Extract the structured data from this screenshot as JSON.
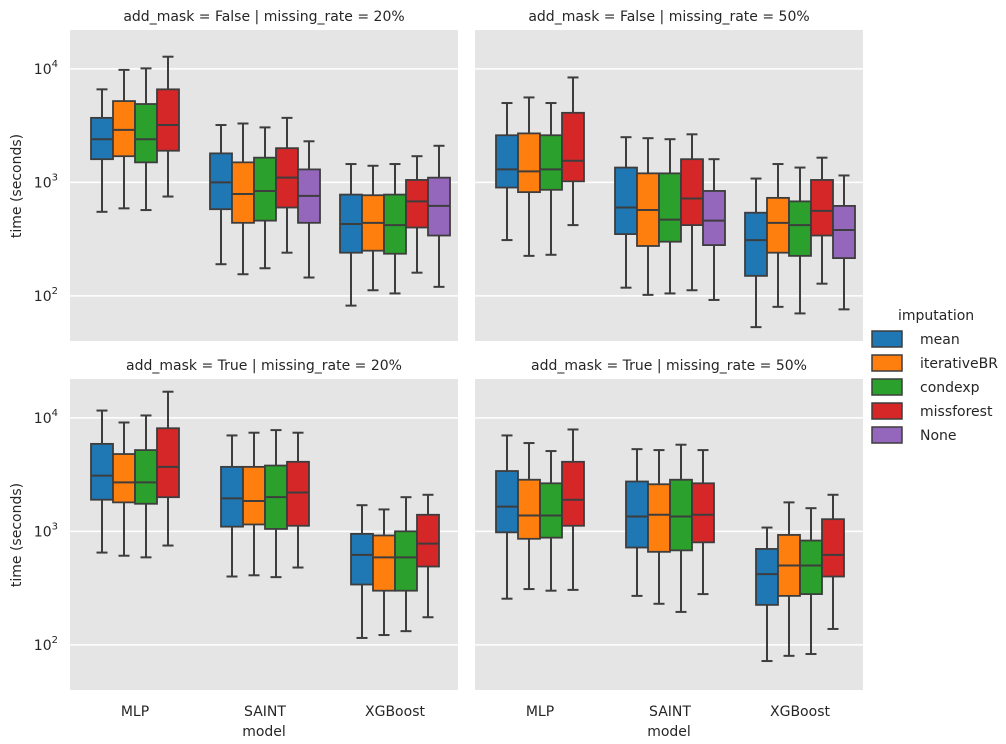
{
  "chart_data": {
    "type": "box",
    "title": "",
    "xlabel": "model",
    "ylabel": "time (seconds)",
    "y_scale": "log",
    "ylim": [
      40,
      22000
    ],
    "grid": true,
    "legend_position": "right",
    "legend_title": "imputation",
    "categories": [
      "MLP",
      "SAINT",
      "XGBoost"
    ],
    "hues": [
      {
        "name": "mean",
        "color": "#1f77b4"
      },
      {
        "name": "iterativeBR",
        "color": "#ff7f0e"
      },
      {
        "name": "condexp",
        "color": "#2ca02c"
      },
      {
        "name": "missforest",
        "color": "#d62728"
      },
      {
        "name": "None",
        "color": "#9467bd"
      }
    ],
    "y_ticks": [
      {
        "value": 100,
        "label": "10",
        "exp": "2"
      },
      {
        "value": 1000,
        "label": "10",
        "exp": "3"
      },
      {
        "value": 10000,
        "label": "10",
        "exp": "4"
      }
    ],
    "facets": [
      {
        "title": "add_mask = False | missing_rate = 20%",
        "boxes": [
          {
            "category": "MLP",
            "hue": "mean",
            "whislo": 550,
            "q1": 1600,
            "med": 2400,
            "q3": 3700,
            "whishi": 6600
          },
          {
            "category": "MLP",
            "hue": "iterativeBR",
            "whislo": 590,
            "q1": 1700,
            "med": 2900,
            "q3": 5200,
            "whishi": 9800
          },
          {
            "category": "MLP",
            "hue": "condexp",
            "whislo": 570,
            "q1": 1500,
            "med": 2400,
            "q3": 4900,
            "whishi": 10100
          },
          {
            "category": "MLP",
            "hue": "missforest",
            "whislo": 750,
            "q1": 1900,
            "med": 3200,
            "q3": 6600,
            "whishi": 12800
          },
          {
            "category": "SAINT",
            "hue": "mean",
            "whislo": 190,
            "q1": 580,
            "med": 1000,
            "q3": 1800,
            "whishi": 3200
          },
          {
            "category": "SAINT",
            "hue": "iterativeBR",
            "whislo": 155,
            "q1": 440,
            "med": 790,
            "q3": 1500,
            "whishi": 3300
          },
          {
            "category": "SAINT",
            "hue": "condexp",
            "whislo": 175,
            "q1": 460,
            "med": 840,
            "q3": 1650,
            "whishi": 3050
          },
          {
            "category": "SAINT",
            "hue": "missforest",
            "whislo": 240,
            "q1": 600,
            "med": 1100,
            "q3": 2000,
            "whishi": 3700
          },
          {
            "category": "SAINT",
            "hue": "None",
            "whislo": 145,
            "q1": 440,
            "med": 760,
            "q3": 1300,
            "whishi": 2300
          },
          {
            "category": "XGBoost",
            "hue": "mean",
            "whislo": 82,
            "q1": 240,
            "med": 430,
            "q3": 780,
            "whishi": 1450
          },
          {
            "category": "XGBoost",
            "hue": "iterativeBR",
            "whislo": 112,
            "q1": 250,
            "med": 440,
            "q3": 770,
            "whishi": 1400
          },
          {
            "category": "XGBoost",
            "hue": "condexp",
            "whislo": 105,
            "q1": 235,
            "med": 420,
            "q3": 780,
            "whishi": 1450
          },
          {
            "category": "XGBoost",
            "hue": "missforest",
            "whislo": 160,
            "q1": 400,
            "med": 680,
            "q3": 1050,
            "whishi": 1700
          },
          {
            "category": "XGBoost",
            "hue": "None",
            "whislo": 120,
            "q1": 340,
            "med": 620,
            "q3": 1100,
            "whishi": 2100
          }
        ]
      },
      {
        "title": "add_mask = False | missing_rate = 50%",
        "boxes": [
          {
            "category": "MLP",
            "hue": "mean",
            "whislo": 310,
            "q1": 900,
            "med": 1300,
            "q3": 2600,
            "whishi": 5000
          },
          {
            "category": "MLP",
            "hue": "iterativeBR",
            "whislo": 225,
            "q1": 820,
            "med": 1250,
            "q3": 2700,
            "whishi": 5600
          },
          {
            "category": "MLP",
            "hue": "condexp",
            "whislo": 230,
            "q1": 860,
            "med": 1300,
            "q3": 2600,
            "whishi": 5000
          },
          {
            "category": "MLP",
            "hue": "missforest",
            "whislo": 420,
            "q1": 1020,
            "med": 1550,
            "q3": 4100,
            "whishi": 8400
          },
          {
            "category": "SAINT",
            "hue": "mean",
            "whislo": 118,
            "q1": 350,
            "med": 600,
            "q3": 1350,
            "whishi": 2500
          },
          {
            "category": "SAINT",
            "hue": "iterativeBR",
            "whislo": 102,
            "q1": 275,
            "med": 570,
            "q3": 1200,
            "whishi": 2450
          },
          {
            "category": "SAINT",
            "hue": "condexp",
            "whislo": 105,
            "q1": 300,
            "med": 470,
            "q3": 1200,
            "whishi": 2400
          },
          {
            "category": "SAINT",
            "hue": "missforest",
            "whislo": 112,
            "q1": 420,
            "med": 720,
            "q3": 1600,
            "whishi": 2650
          },
          {
            "category": "SAINT",
            "hue": "None",
            "whislo": 92,
            "q1": 280,
            "med": 460,
            "q3": 840,
            "whishi": 1600
          },
          {
            "category": "XGBoost",
            "hue": "mean",
            "whislo": 53,
            "q1": 150,
            "med": 310,
            "q3": 540,
            "whishi": 1080
          },
          {
            "category": "XGBoost",
            "hue": "iterativeBR",
            "whislo": 80,
            "q1": 240,
            "med": 440,
            "q3": 730,
            "whishi": 1450
          },
          {
            "category": "XGBoost",
            "hue": "condexp",
            "whislo": 70,
            "q1": 225,
            "med": 420,
            "q3": 680,
            "whishi": 1350
          },
          {
            "category": "XGBoost",
            "hue": "missforest",
            "whislo": 128,
            "q1": 340,
            "med": 560,
            "q3": 1050,
            "whishi": 1650
          },
          {
            "category": "XGBoost",
            "hue": "None",
            "whislo": 76,
            "q1": 215,
            "med": 380,
            "q3": 620,
            "whishi": 1150
          }
        ]
      },
      {
        "title": "add_mask = True | missing_rate = 20%",
        "boxes": [
          {
            "category": "MLP",
            "hue": "mean",
            "whislo": 650,
            "q1": 1900,
            "med": 3100,
            "q3": 5900,
            "whishi": 11600
          },
          {
            "category": "MLP",
            "hue": "iterativeBR",
            "whislo": 610,
            "q1": 1800,
            "med": 2700,
            "q3": 4800,
            "whishi": 9100
          },
          {
            "category": "MLP",
            "hue": "condexp",
            "whislo": 590,
            "q1": 1750,
            "med": 2700,
            "q3": 5200,
            "whishi": 10500
          },
          {
            "category": "MLP",
            "hue": "missforest",
            "whislo": 750,
            "q1": 2000,
            "med": 3700,
            "q3": 8100,
            "whishi": 17000
          },
          {
            "category": "SAINT",
            "hue": "mean",
            "whislo": 400,
            "q1": 1100,
            "med": 1950,
            "q3": 3700,
            "whishi": 7000
          },
          {
            "category": "SAINT",
            "hue": "iterativeBR",
            "whislo": 410,
            "q1": 1150,
            "med": 1850,
            "q3": 3700,
            "whishi": 7400
          },
          {
            "category": "SAINT",
            "hue": "condexp",
            "whislo": 395,
            "q1": 1050,
            "med": 2000,
            "q3": 3800,
            "whishi": 7800
          },
          {
            "category": "SAINT",
            "hue": "missforest",
            "whislo": 480,
            "q1": 1120,
            "med": 2200,
            "q3": 4100,
            "whishi": 7400
          },
          {
            "category": "XGBoost",
            "hue": "mean",
            "whislo": 115,
            "q1": 340,
            "med": 620,
            "q3": 950,
            "whishi": 1700
          },
          {
            "category": "XGBoost",
            "hue": "iterativeBR",
            "whislo": 122,
            "q1": 300,
            "med": 590,
            "q3": 920,
            "whishi": 1560
          },
          {
            "category": "XGBoost",
            "hue": "condexp",
            "whislo": 132,
            "q1": 300,
            "med": 590,
            "q3": 1000,
            "whishi": 2000
          },
          {
            "category": "XGBoost",
            "hue": "missforest",
            "whislo": 175,
            "q1": 490,
            "med": 780,
            "q3": 1400,
            "whishi": 2100
          }
        ]
      },
      {
        "title": "add_mask = True | missing_rate = 50%",
        "boxes": [
          {
            "category": "MLP",
            "hue": "mean",
            "whislo": 255,
            "q1": 980,
            "med": 1650,
            "q3": 3400,
            "whishi": 7000
          },
          {
            "category": "MLP",
            "hue": "iterativeBR",
            "whislo": 310,
            "q1": 860,
            "med": 1380,
            "q3": 2850,
            "whishi": 6000
          },
          {
            "category": "MLP",
            "hue": "condexp",
            "whislo": 300,
            "q1": 880,
            "med": 1380,
            "q3": 2650,
            "whishi": 5100
          },
          {
            "category": "MLP",
            "hue": "missforest",
            "whislo": 305,
            "q1": 1120,
            "med": 1900,
            "q3": 4100,
            "whishi": 7900
          },
          {
            "category": "SAINT",
            "hue": "mean",
            "whislo": 270,
            "q1": 720,
            "med": 1350,
            "q3": 2750,
            "whishi": 5300
          },
          {
            "category": "SAINT",
            "hue": "iterativeBR",
            "whislo": 230,
            "q1": 660,
            "med": 1400,
            "q3": 2600,
            "whishi": 5200
          },
          {
            "category": "SAINT",
            "hue": "condexp",
            "whislo": 195,
            "q1": 680,
            "med": 1350,
            "q3": 2850,
            "whishi": 5800
          },
          {
            "category": "SAINT",
            "hue": "missforest",
            "whislo": 280,
            "q1": 800,
            "med": 1400,
            "q3": 2650,
            "whishi": 5200
          },
          {
            "category": "XGBoost",
            "hue": "mean",
            "whislo": 72,
            "q1": 225,
            "med": 420,
            "q3": 700,
            "whishi": 1080
          },
          {
            "category": "XGBoost",
            "hue": "iterativeBR",
            "whislo": 80,
            "q1": 270,
            "med": 500,
            "q3": 930,
            "whishi": 1800
          },
          {
            "category": "XGBoost",
            "hue": "condexp",
            "whislo": 83,
            "q1": 280,
            "med": 500,
            "q3": 830,
            "whishi": 1600
          },
          {
            "category": "XGBoost",
            "hue": "missforest",
            "whislo": 138,
            "q1": 400,
            "med": 620,
            "q3": 1280,
            "whishi": 2100
          }
        ]
      }
    ]
  }
}
